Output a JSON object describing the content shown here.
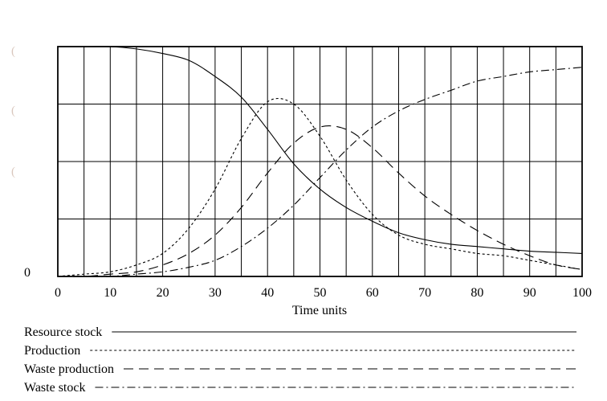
{
  "chart_data": {
    "type": "line",
    "title": "",
    "xlabel": "Time units",
    "ylabel": "",
    "xlim": [
      0,
      100
    ],
    "ylim": [
      0,
      1
    ],
    "x_ticks": [
      "0",
      "10",
      "20",
      "30",
      "40",
      "50",
      "60",
      "70",
      "80",
      "90",
      "100"
    ],
    "y_tick_labels": [
      "0"
    ],
    "grid": true,
    "legend_position": "bottom",
    "x": [
      0,
      5,
      10,
      15,
      20,
      25,
      30,
      35,
      40,
      45,
      50,
      55,
      60,
      65,
      70,
      75,
      80,
      85,
      90,
      95,
      100
    ],
    "series": [
      {
        "name": "Resource stock",
        "style": "solid",
        "values": [
          1.0,
          1.0,
          1.0,
          0.99,
          0.97,
          0.94,
          0.87,
          0.78,
          0.64,
          0.49,
          0.38,
          0.3,
          0.24,
          0.19,
          0.16,
          0.14,
          0.13,
          0.12,
          0.11,
          0.105,
          0.1
        ]
      },
      {
        "name": "Production",
        "style": "dotted",
        "values": [
          0.0,
          0.01,
          0.02,
          0.05,
          0.1,
          0.21,
          0.38,
          0.6,
          0.76,
          0.75,
          0.61,
          0.42,
          0.27,
          0.18,
          0.14,
          0.12,
          0.1,
          0.09,
          0.07,
          0.05,
          0.03
        ]
      },
      {
        "name": "Waste production",
        "style": "dashed",
        "values": [
          0.0,
          0.0,
          0.01,
          0.02,
          0.05,
          0.1,
          0.18,
          0.3,
          0.45,
          0.58,
          0.65,
          0.64,
          0.56,
          0.45,
          0.35,
          0.27,
          0.2,
          0.14,
          0.09,
          0.05,
          0.03
        ]
      },
      {
        "name": "Waste stock",
        "style": "dashdot",
        "values": [
          0.0,
          0.0,
          0.0,
          0.01,
          0.02,
          0.04,
          0.07,
          0.13,
          0.21,
          0.31,
          0.43,
          0.55,
          0.65,
          0.72,
          0.77,
          0.81,
          0.85,
          0.87,
          0.89,
          0.9,
          0.91
        ]
      }
    ],
    "faint_marks": [
      "(",
      "(",
      "("
    ]
  }
}
